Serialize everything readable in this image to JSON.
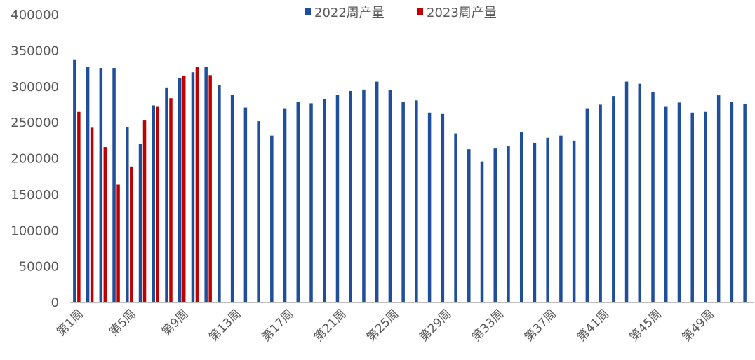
{
  "chart_data": {
    "type": "bar",
    "title": "",
    "xlabel": "",
    "ylabel": "",
    "ylim": [
      0,
      400000
    ],
    "yticks": [
      0,
      50000,
      100000,
      150000,
      200000,
      250000,
      300000,
      350000,
      400000
    ],
    "grid": false,
    "legend_position": "top-center",
    "categories": [
      "第1周",
      "第2周",
      "第3周",
      "第4周",
      "第5周",
      "第6周",
      "第7周",
      "第8周",
      "第9周",
      "第10周",
      "第11周",
      "第12周",
      "第13周",
      "第14周",
      "第15周",
      "第16周",
      "第17周",
      "第18周",
      "第19周",
      "第20周",
      "第21周",
      "第22周",
      "第23周",
      "第24周",
      "第25周",
      "第26周",
      "第27周",
      "第28周",
      "第29周",
      "第30周",
      "第31周",
      "第32周",
      "第33周",
      "第34周",
      "第35周",
      "第36周",
      "第37周",
      "第38周",
      "第39周",
      "第40周",
      "第41周",
      "第42周",
      "第43周",
      "第44周",
      "第45周",
      "第46周",
      "第47周",
      "第48周",
      "第49周",
      "第50周",
      "第51周",
      "第52周"
    ],
    "xtick_labels": [
      "第1周",
      "第5周",
      "第9周",
      "第13周",
      "第17周",
      "第21周",
      "第25周",
      "第29周",
      "第33周",
      "第37周",
      "第41周",
      "第45周",
      "第49周"
    ],
    "series": [
      {
        "name": "2022周产量",
        "color": "#1F4E9A",
        "values": [
          337000,
          326000,
          325000,
          325000,
          243000,
          220000,
          273000,
          298000,
          311000,
          319000,
          327000,
          301000,
          288000,
          270000,
          251000,
          231000,
          269000,
          278000,
          276000,
          282000,
          288000,
          293000,
          295000,
          306000,
          294000,
          278000,
          280000,
          263000,
          261000,
          234000,
          212000,
          195000,
          213000,
          216000,
          236000,
          221000,
          228000,
          231000,
          224000,
          269000,
          274000,
          286000,
          306000,
          303000,
          292000,
          271000,
          277000,
          263000,
          264000,
          287000,
          278000,
          275000
        ]
      },
      {
        "name": "2023周产量",
        "color": "#C00000",
        "values": [
          264000,
          242000,
          215000,
          163000,
          188000,
          252000,
          271000,
          283000,
          314000,
          326000,
          315000,
          null,
          null,
          null,
          null,
          null,
          null,
          null,
          null,
          null,
          null,
          null,
          null,
          null,
          null,
          null,
          null,
          null,
          null,
          null,
          null,
          null,
          null,
          null,
          null,
          null,
          null,
          null,
          null,
          null,
          null,
          null,
          null,
          null,
          null,
          null,
          null,
          null,
          null,
          null,
          null,
          null
        ]
      }
    ]
  }
}
